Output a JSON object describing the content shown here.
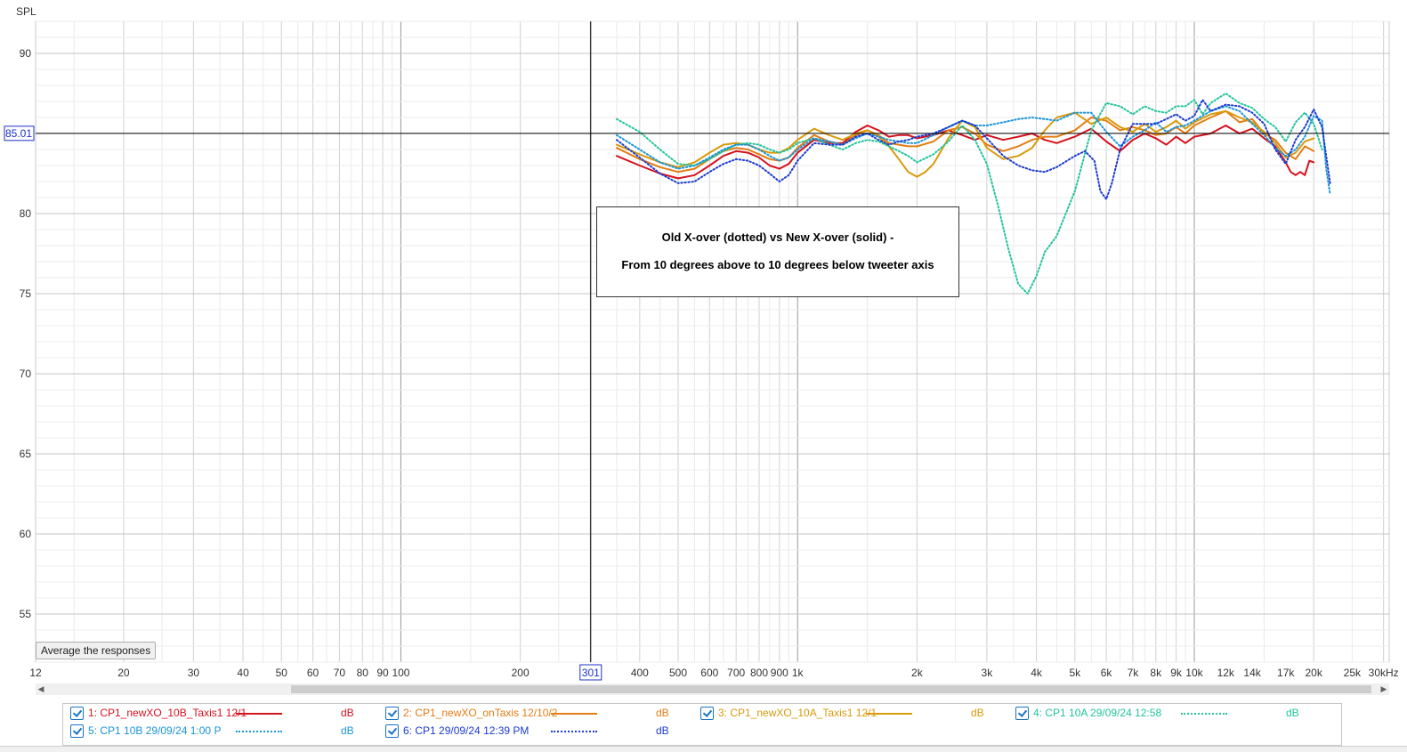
{
  "chart_data": {
    "type": "line",
    "ylabel": "SPL",
    "xscale": "log",
    "xlim": [
      12,
      31000
    ],
    "ylim": [
      52,
      92
    ],
    "y_ticks": [
      55,
      60,
      65,
      70,
      75,
      80,
      85,
      90
    ],
    "x_ticks": [
      {
        "v": 12,
        "label": "12"
      },
      {
        "v": 20,
        "label": "20"
      },
      {
        "v": 30,
        "label": "30"
      },
      {
        "v": 40,
        "label": "40"
      },
      {
        "v": 50,
        "label": "50"
      },
      {
        "v": 60,
        "label": "60"
      },
      {
        "v": 70,
        "label": "70"
      },
      {
        "v": 80,
        "label": "80"
      },
      {
        "v": 90,
        "label": "90"
      },
      {
        "v": 100,
        "label": "100"
      },
      {
        "v": 200,
        "label": "200"
      },
      {
        "v": 400,
        "label": "400"
      },
      {
        "v": 500,
        "label": "500"
      },
      {
        "v": 600,
        "label": "600"
      },
      {
        "v": 700,
        "label": "700"
      },
      {
        "v": 800,
        "label": "800"
      },
      {
        "v": 900,
        "label": "900"
      },
      {
        "v": 1000,
        "label": "1k"
      },
      {
        "v": 2000,
        "label": "2k"
      },
      {
        "v": 3000,
        "label": "3k"
      },
      {
        "v": 4000,
        "label": "4k"
      },
      {
        "v": 5000,
        "label": "5k"
      },
      {
        "v": 6000,
        "label": "6k"
      },
      {
        "v": 7000,
        "label": "7k"
      },
      {
        "v": 8000,
        "label": "8k"
      },
      {
        "v": 9000,
        "label": "9k"
      },
      {
        "v": 10000,
        "label": "10k"
      },
      {
        "v": 12000,
        "label": "12k"
      },
      {
        "v": 14000,
        "label": "14k"
      },
      {
        "v": 17000,
        "label": "17k"
      },
      {
        "v": 20000,
        "label": "20k"
      },
      {
        "v": 25000,
        "label": "25k"
      },
      {
        "v": 30000,
        "label": "30kHz"
      }
    ],
    "cursor": {
      "x": 301,
      "x_label": "301",
      "y": 85.01,
      "y_label": "85.01"
    },
    "annotation": {
      "line1": "Old X-over (dotted) vs New X-over (solid) -",
      "line2": "From 10 degrees above to 10 degrees below tweeter axis"
    },
    "grid": true,
    "series": [
      {
        "name": "1: CP1_newXO_10B_Taxis1 12/1",
        "unit": "dB",
        "color": "#d4121e",
        "style": "solid",
        "x": [
          350,
          400,
          450,
          500,
          550,
          600,
          650,
          700,
          750,
          800,
          850,
          900,
          950,
          1000,
          1100,
          1200,
          1300,
          1400,
          1500,
          1600,
          1700,
          1800,
          1900,
          2000,
          2200,
          2400,
          2600,
          2800,
          3000,
          3300,
          3600,
          3900,
          4200,
          4500,
          5000,
          5500,
          6000,
          6500,
          7000,
          7500,
          8000,
          8500,
          9000,
          9500,
          10000,
          11000,
          12000,
          13000,
          14000,
          15000,
          16000,
          17000,
          17500,
          18000,
          18500,
          19000,
          19500,
          20000
        ],
        "y": [
          83.6,
          83.0,
          82.5,
          82.2,
          82.4,
          83.0,
          83.6,
          83.9,
          83.8,
          83.5,
          83.0,
          82.8,
          83.1,
          83.8,
          84.6,
          84.4,
          84.4,
          85.1,
          85.5,
          85.2,
          84.8,
          84.9,
          84.9,
          84.7,
          84.9,
          85.2,
          84.9,
          84.6,
          84.9,
          84.6,
          84.8,
          85.0,
          84.6,
          84.4,
          84.8,
          85.3,
          84.5,
          83.9,
          84.6,
          85.0,
          84.7,
          84.3,
          84.8,
          84.4,
          84.8,
          85.0,
          85.5,
          85.0,
          85.3,
          84.7,
          84.2,
          83.2,
          82.6,
          82.4,
          82.6,
          82.4,
          83.3,
          83.2
        ]
      },
      {
        "name": "2: CP1_newXO_onTaxis 12/10/2",
        "unit": "dB",
        "color": "#e37d14",
        "style": "solid",
        "x": [
          350,
          400,
          450,
          500,
          550,
          600,
          650,
          700,
          750,
          800,
          850,
          900,
          950,
          1000,
          1100,
          1200,
          1300,
          1400,
          1500,
          1600,
          1700,
          1800,
          1900,
          2000,
          2200,
          2400,
          2600,
          2800,
          3000,
          3300,
          3600,
          3900,
          4200,
          4500,
          5000,
          5500,
          6000,
          6500,
          7000,
          7500,
          8000,
          8500,
          9000,
          9500,
          10000,
          11000,
          12000,
          13000,
          14000,
          15000,
          16000,
          17000,
          18000,
          19000,
          20000
        ],
        "y": [
          84.1,
          83.4,
          82.9,
          82.6,
          82.8,
          83.4,
          83.9,
          84.1,
          84.0,
          83.7,
          83.4,
          83.3,
          83.5,
          84.1,
          84.9,
          84.5,
          84.3,
          84.9,
          85.2,
          84.9,
          84.4,
          84.3,
          84.2,
          84.2,
          84.5,
          85.2,
          85.4,
          85.0,
          84.3,
          83.9,
          84.2,
          84.6,
          84.8,
          84.8,
          85.2,
          86.0,
          85.8,
          85.2,
          85.4,
          85.2,
          84.9,
          85.0,
          85.4,
          85.0,
          85.5,
          86.0,
          86.4,
          85.7,
          85.9,
          85.0,
          84.6,
          83.8,
          83.4,
          84.2,
          83.9
        ]
      },
      {
        "name": "3: CP1_newXO_10A_Taxis1 12/1",
        "unit": "dB",
        "color": "#d99a0b",
        "style": "solid",
        "x": [
          350,
          400,
          450,
          500,
          550,
          600,
          650,
          700,
          750,
          800,
          850,
          900,
          950,
          1000,
          1100,
          1200,
          1300,
          1400,
          1500,
          1600,
          1700,
          1800,
          1900,
          2000,
          2100,
          2200,
          2400,
          2600,
          2800,
          3000,
          3300,
          3600,
          3900,
          4200,
          4500,
          5000,
          5500,
          6000,
          6500,
          7000,
          7500,
          8000,
          8500,
          9000,
          9500,
          10000,
          11000,
          12000,
          13000,
          14000,
          15000,
          16000,
          17000,
          18000,
          19000,
          20000
        ],
        "y": [
          84.3,
          83.7,
          83.2,
          82.9,
          83.2,
          83.8,
          84.3,
          84.4,
          84.3,
          84.0,
          83.8,
          83.8,
          84.1,
          84.6,
          85.3,
          84.9,
          84.6,
          85.0,
          85.2,
          84.8,
          84.2,
          83.4,
          82.6,
          82.3,
          82.6,
          83.1,
          84.7,
          85.8,
          85.4,
          84.1,
          83.4,
          83.6,
          84.1,
          85.2,
          86.0,
          86.3,
          85.6,
          86.0,
          85.4,
          85.1,
          85.6,
          85.1,
          85.4,
          85.8,
          85.3,
          85.7,
          86.2,
          86.4,
          86.0,
          85.7,
          85.1,
          84.4,
          83.5,
          83.8,
          84.5,
          84.7
        ]
      },
      {
        "name": "4: CP1 10A 29/09/24 12:58",
        "unit": "dB",
        "color": "#22c49b",
        "style": "dotted",
        "x": [
          350,
          400,
          450,
          500,
          550,
          600,
          650,
          700,
          750,
          800,
          850,
          900,
          950,
          1000,
          1100,
          1200,
          1300,
          1400,
          1500,
          1600,
          1700,
          1800,
          1900,
          2000,
          2200,
          2400,
          2600,
          2800,
          3000,
          3200,
          3400,
          3600,
          3800,
          4000,
          4200,
          4500,
          5000,
          5500,
          6000,
          6500,
          7000,
          7500,
          8000,
          8500,
          9000,
          9500,
          10000,
          10500,
          11000,
          12000,
          13000,
          14000,
          15000,
          16000,
          17000,
          18000,
          19000,
          20000,
          21000
        ],
        "y": [
          85.9,
          85.1,
          84.0,
          83.1,
          83.0,
          83.4,
          83.9,
          84.3,
          84.4,
          84.3,
          84.0,
          83.8,
          84.0,
          84.4,
          84.7,
          84.3,
          84.0,
          84.4,
          84.6,
          84.5,
          84.2,
          83.9,
          83.6,
          83.2,
          83.7,
          84.5,
          85.5,
          84.6,
          83.1,
          80.5,
          77.8,
          75.6,
          75.0,
          76.1,
          77.6,
          78.6,
          81.4,
          85.2,
          86.9,
          86.7,
          86.2,
          86.7,
          86.4,
          86.3,
          86.7,
          86.7,
          87.1,
          86.2,
          86.9,
          87.5,
          86.9,
          86.6,
          85.9,
          85.4,
          84.5,
          85.7,
          86.3,
          85.6,
          84.0
        ]
      },
      {
        "name": "5: CP1 10B 29/09/24 1:00 P",
        "unit": "dB",
        "color": "#1a95d7",
        "style": "dotted",
        "x": [
          350,
          400,
          450,
          500,
          550,
          600,
          650,
          700,
          750,
          800,
          850,
          900,
          950,
          1000,
          1100,
          1200,
          1300,
          1400,
          1500,
          1600,
          1700,
          1800,
          1900,
          2000,
          2200,
          2400,
          2600,
          2800,
          3000,
          3300,
          3600,
          3900,
          4200,
          4500,
          5000,
          5500,
          6000,
          6500,
          7000,
          7500,
          8000,
          8500,
          9000,
          9500,
          10000,
          11000,
          12000,
          13000,
          14000,
          15000,
          16000,
          17000,
          18000,
          19000,
          20000,
          21000,
          21500,
          22000
        ],
        "y": [
          84.9,
          84.0,
          83.2,
          82.8,
          83.0,
          83.5,
          84.0,
          84.3,
          84.3,
          84.0,
          83.6,
          83.3,
          83.5,
          84.0,
          84.7,
          84.5,
          84.3,
          84.7,
          85.0,
          84.8,
          84.6,
          84.5,
          84.4,
          84.4,
          84.9,
          85.4,
          85.8,
          85.5,
          85.5,
          85.7,
          85.9,
          86.0,
          85.9,
          85.8,
          86.3,
          86.3,
          85.1,
          84.2,
          84.8,
          85.2,
          85.7,
          85.1,
          85.4,
          85.5,
          85.8,
          86.4,
          86.7,
          86.4,
          85.6,
          84.9,
          84.1,
          83.6,
          84.0,
          84.8,
          86.1,
          85.8,
          82.8,
          81.2
        ]
      },
      {
        "name": "6: CP1 29/09/24 12:39 PM",
        "unit": "dB",
        "color": "#1c3bd1",
        "style": "dotted",
        "x": [
          350,
          400,
          450,
          500,
          550,
          600,
          650,
          700,
          750,
          800,
          850,
          900,
          950,
          1000,
          1100,
          1200,
          1300,
          1400,
          1500,
          1600,
          1700,
          1800,
          1900,
          2000,
          2200,
          2400,
          2600,
          2800,
          3000,
          3300,
          3600,
          3900,
          4200,
          4500,
          5000,
          5300,
          5600,
          5800,
          6000,
          6200,
          6500,
          7000,
          7500,
          8000,
          8500,
          9000,
          9500,
          10000,
          10500,
          11000,
          12000,
          13000,
          14000,
          15000,
          16000,
          17000,
          18000,
          19000,
          20000,
          21000,
          21500,
          22000
        ],
        "y": [
          84.6,
          83.5,
          82.5,
          81.9,
          82.0,
          82.6,
          83.1,
          83.4,
          83.3,
          83.0,
          82.5,
          82.0,
          82.4,
          83.3,
          84.4,
          84.3,
          84.3,
          84.8,
          85.0,
          84.6,
          84.3,
          84.5,
          84.6,
          84.8,
          85.0,
          85.4,
          85.8,
          85.5,
          84.7,
          83.6,
          83.0,
          82.7,
          82.6,
          82.9,
          83.6,
          83.9,
          83.3,
          81.4,
          80.9,
          81.9,
          84.0,
          85.6,
          85.6,
          85.6,
          85.9,
          86.2,
          85.8,
          86.1,
          87.1,
          86.4,
          86.8,
          86.7,
          86.3,
          85.6,
          84.0,
          83.1,
          84.6,
          85.4,
          86.5,
          85.4,
          83.6,
          81.9
        ]
      }
    ]
  },
  "toolbar": {
    "average_button": "Average the responses"
  }
}
